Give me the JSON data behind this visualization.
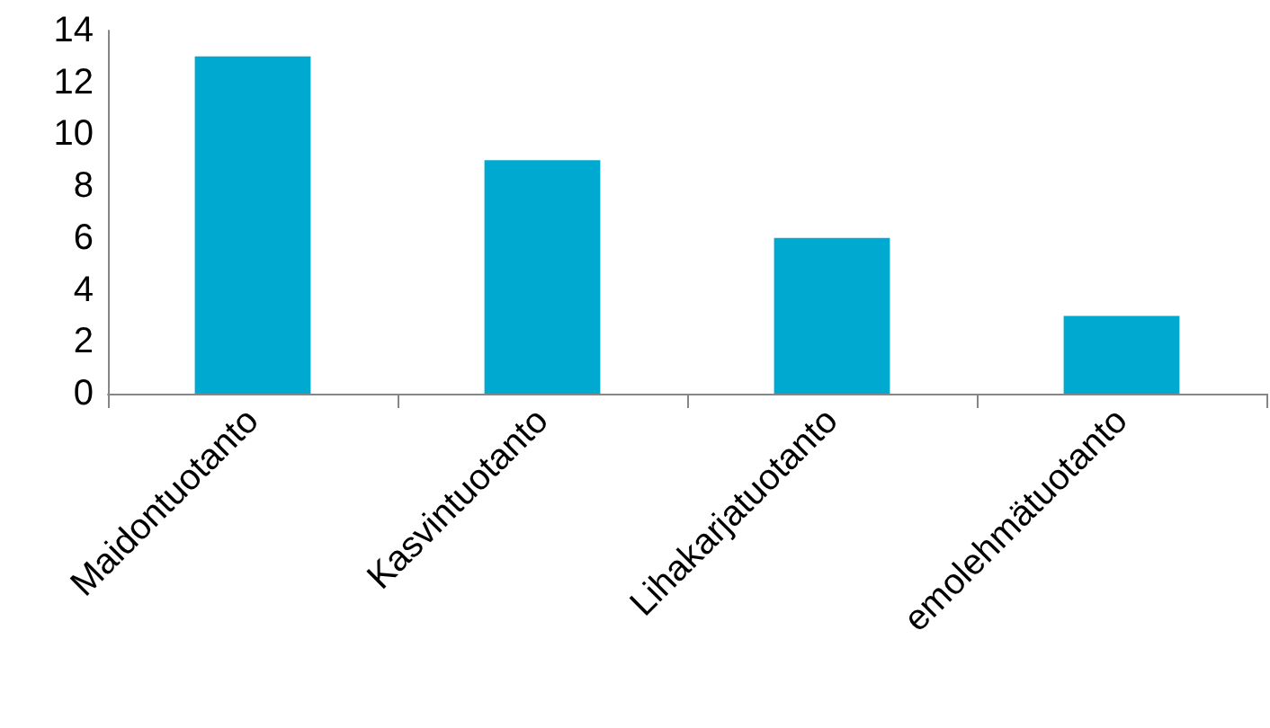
{
  "chart_data": {
    "type": "bar",
    "categories": [
      "Maidontuotanto",
      "Kasvintuotanto",
      "Lihakarjatuotanto",
      "emolehmätuotanto"
    ],
    "values": [
      13,
      9,
      6,
      3
    ],
    "color": "#00a9d0",
    "ylim": [
      0,
      14
    ],
    "yticks": [
      0,
      2,
      4,
      6,
      8,
      10,
      12,
      14
    ],
    "grid": false
  }
}
